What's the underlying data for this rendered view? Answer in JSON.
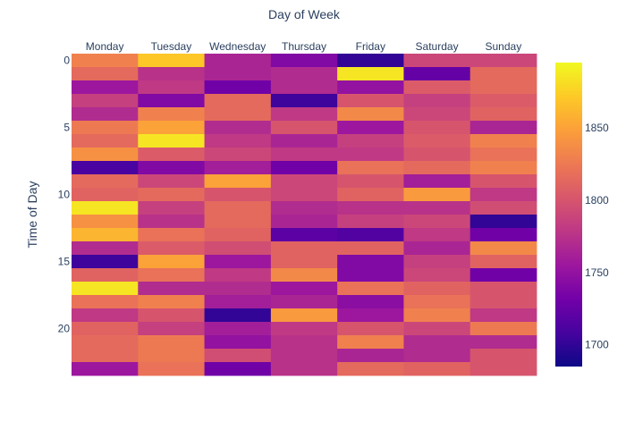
{
  "chart_data": {
    "type": "heatmap",
    "title": "",
    "xlabel": "Day of Week",
    "ylabel": "Time of Day",
    "x_axis_position": "top",
    "y_axis_reversed": true,
    "categories": [
      "Monday",
      "Tuesday",
      "Wednesday",
      "Thursday",
      "Friday",
      "Saturday",
      "Sunday"
    ],
    "y": [
      0,
      1,
      2,
      3,
      4,
      5,
      6,
      7,
      8,
      9,
      10,
      11,
      12,
      13,
      14,
      15,
      16,
      17,
      18,
      19,
      20,
      21,
      22,
      23
    ],
    "y_tick_labels": [
      "0",
      "5",
      "10",
      "15",
      "20"
    ],
    "y_tick_values": [
      0,
      5,
      10,
      15,
      20
    ],
    "z": [
      [
        1830,
        1870,
        1765,
        1740,
        1700,
        1790,
        1790
      ],
      [
        1815,
        1775,
        1765,
        1770,
        1885,
        1725,
        1815
      ],
      [
        1755,
        1780,
        1730,
        1770,
        1750,
        1805,
        1815
      ],
      [
        1785,
        1740,
        1815,
        1705,
        1800,
        1785,
        1805
      ],
      [
        1770,
        1830,
        1815,
        1780,
        1835,
        1790,
        1810
      ],
      [
        1825,
        1850,
        1770,
        1800,
        1755,
        1800,
        1765
      ],
      [
        1815,
        1885,
        1780,
        1765,
        1785,
        1805,
        1830
      ],
      [
        1840,
        1805,
        1790,
        1780,
        1780,
        1800,
        1820
      ],
      [
        1710,
        1740,
        1760,
        1730,
        1820,
        1815,
        1830
      ],
      [
        1815,
        1790,
        1850,
        1790,
        1800,
        1760,
        1800
      ],
      [
        1810,
        1815,
        1800,
        1790,
        1810,
        1845,
        1780
      ],
      [
        1885,
        1785,
        1815,
        1770,
        1775,
        1775,
        1795
      ],
      [
        1840,
        1775,
        1815,
        1765,
        1785,
        1790,
        1700
      ],
      [
        1860,
        1820,
        1810,
        1720,
        1715,
        1780,
        1730
      ],
      [
        1770,
        1805,
        1795,
        1810,
        1810,
        1765,
        1835
      ],
      [
        1705,
        1850,
        1755,
        1810,
        1740,
        1785,
        1810
      ],
      [
        1810,
        1820,
        1780,
        1835,
        1740,
        1790,
        1730
      ],
      [
        1885,
        1770,
        1770,
        1755,
        1820,
        1810,
        1800
      ],
      [
        1820,
        1830,
        1760,
        1765,
        1745,
        1820,
        1800
      ],
      [
        1780,
        1800,
        1700,
        1845,
        1755,
        1830,
        1780
      ],
      [
        1810,
        1785,
        1760,
        1780,
        1800,
        1790,
        1825
      ],
      [
        1815,
        1825,
        1750,
        1775,
        1830,
        1770,
        1770
      ],
      [
        1815,
        1825,
        1795,
        1775,
        1765,
        1770,
        1800
      ],
      [
        1755,
        1820,
        1730,
        1775,
        1815,
        1810,
        1800
      ]
    ],
    "zlim": [
      1685,
      1895
    ],
    "colorbar_ticks": [
      1700,
      1750,
      1800,
      1850
    ],
    "colorscale": [
      "#0d0887",
      "#46039f",
      "#7201a8",
      "#9c179e",
      "#bd3786",
      "#d8576b",
      "#ed7953",
      "#fb9f3a",
      "#fdca26",
      "#f0f921"
    ],
    "legend": "none"
  }
}
